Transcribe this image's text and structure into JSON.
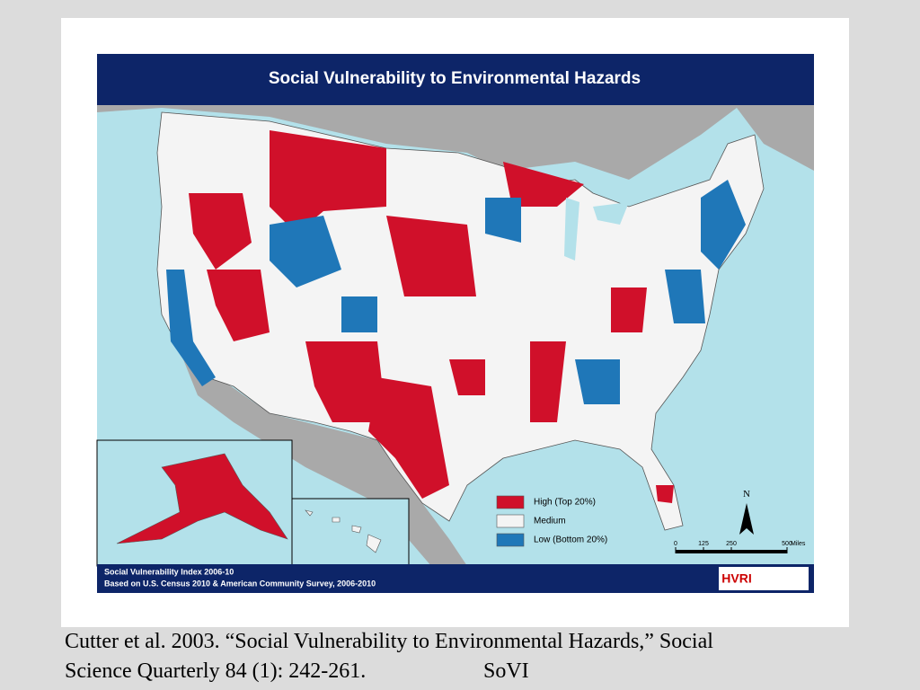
{
  "header": {
    "title": "Social Vulnerability to Environmental Hazards"
  },
  "legend": {
    "items": [
      "High (Top 20%)",
      "Medium",
      "Low (Bottom 20%)"
    ]
  },
  "scale": {
    "ticks": [
      0,
      125,
      250,
      500
    ],
    "unit": "Miles"
  },
  "compass": "N",
  "footer": {
    "lines": [
      "Social Vulnerability Index 2006-10",
      "Based on U.S. Census 2010 & American Community Survey, 2006-2010"
    ]
  },
  "logo": "HVRI",
  "caption": {
    "lines": [
      "Cutter et al. 2003. “Social Vulnerability to Environmental Hazards,” Social",
      "Science Quarterly 84 (1): 242-261."
    ],
    "tag": "SoVI"
  }
}
